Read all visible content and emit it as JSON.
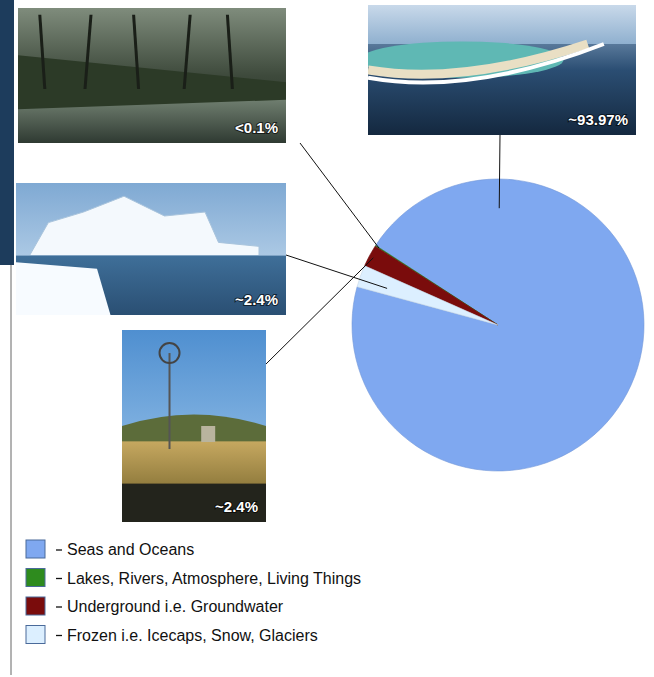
{
  "chart_data": {
    "type": "pie",
    "categories": [
      "Seas and Oceans",
      "Lakes, Rivers, Atmosphere, Living Things",
      "Underground i.e. Groundwater",
      "Frozen i.e. Icecaps, Snow, Glaciers"
    ],
    "values": [
      93.97,
      0.1,
      2.4,
      2.4
    ],
    "value_labels": [
      "~93.97%",
      "<0.1%",
      "~2.4%",
      "~2.4%"
    ],
    "colors": [
      "#7fa8f0",
      "#2e8b1e",
      "#7a0c0c",
      "#dcefff"
    ],
    "data_labels": true,
    "legend": "bottom-left"
  }
}
